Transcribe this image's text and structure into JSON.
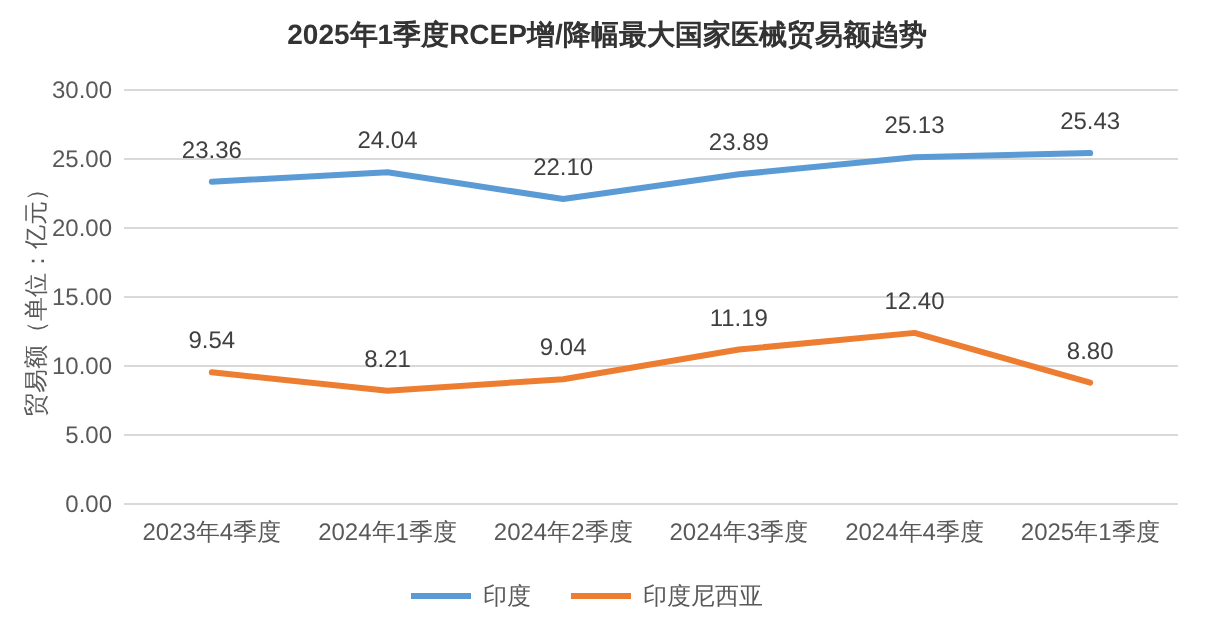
{
  "chart_data": {
    "type": "line",
    "title": "2025年1季度RCEP增/降幅最大国家医械贸易额趋势",
    "ylabel": "贸易额（单位：亿元）",
    "categories": [
      "2023年4季度",
      "2024年1季度",
      "2024年2季度",
      "2024年3季度",
      "2024年4季度",
      "2025年1季度"
    ],
    "series": [
      {
        "name": "印度",
        "color": "#5b9bd5",
        "values": [
          23.36,
          24.04,
          22.1,
          23.89,
          25.13,
          25.43
        ],
        "value_labels": [
          "23.36",
          "24.04",
          "22.10",
          "23.89",
          "25.13",
          "25.43"
        ]
      },
      {
        "name": "印度尼西亚",
        "color": "#ed7d31",
        "values": [
          9.54,
          8.21,
          9.04,
          11.19,
          12.4,
          8.8
        ],
        "value_labels": [
          "9.54",
          "8.21",
          "9.04",
          "11.19",
          "12.40",
          "8.80"
        ]
      }
    ],
    "ylim": [
      0,
      30
    ],
    "yticks": [
      {
        "value": 0,
        "label": "0.00"
      },
      {
        "value": 5,
        "label": "5.00"
      },
      {
        "value": 10,
        "label": "10.00"
      },
      {
        "value": 15,
        "label": "15.00"
      },
      {
        "value": 20,
        "label": "20.00"
      },
      {
        "value": 25,
        "label": "25.00"
      },
      {
        "value": 30,
        "label": "30.00"
      }
    ],
    "grid": true,
    "legend": "bottom",
    "marker": "none",
    "line_style": "solid"
  }
}
